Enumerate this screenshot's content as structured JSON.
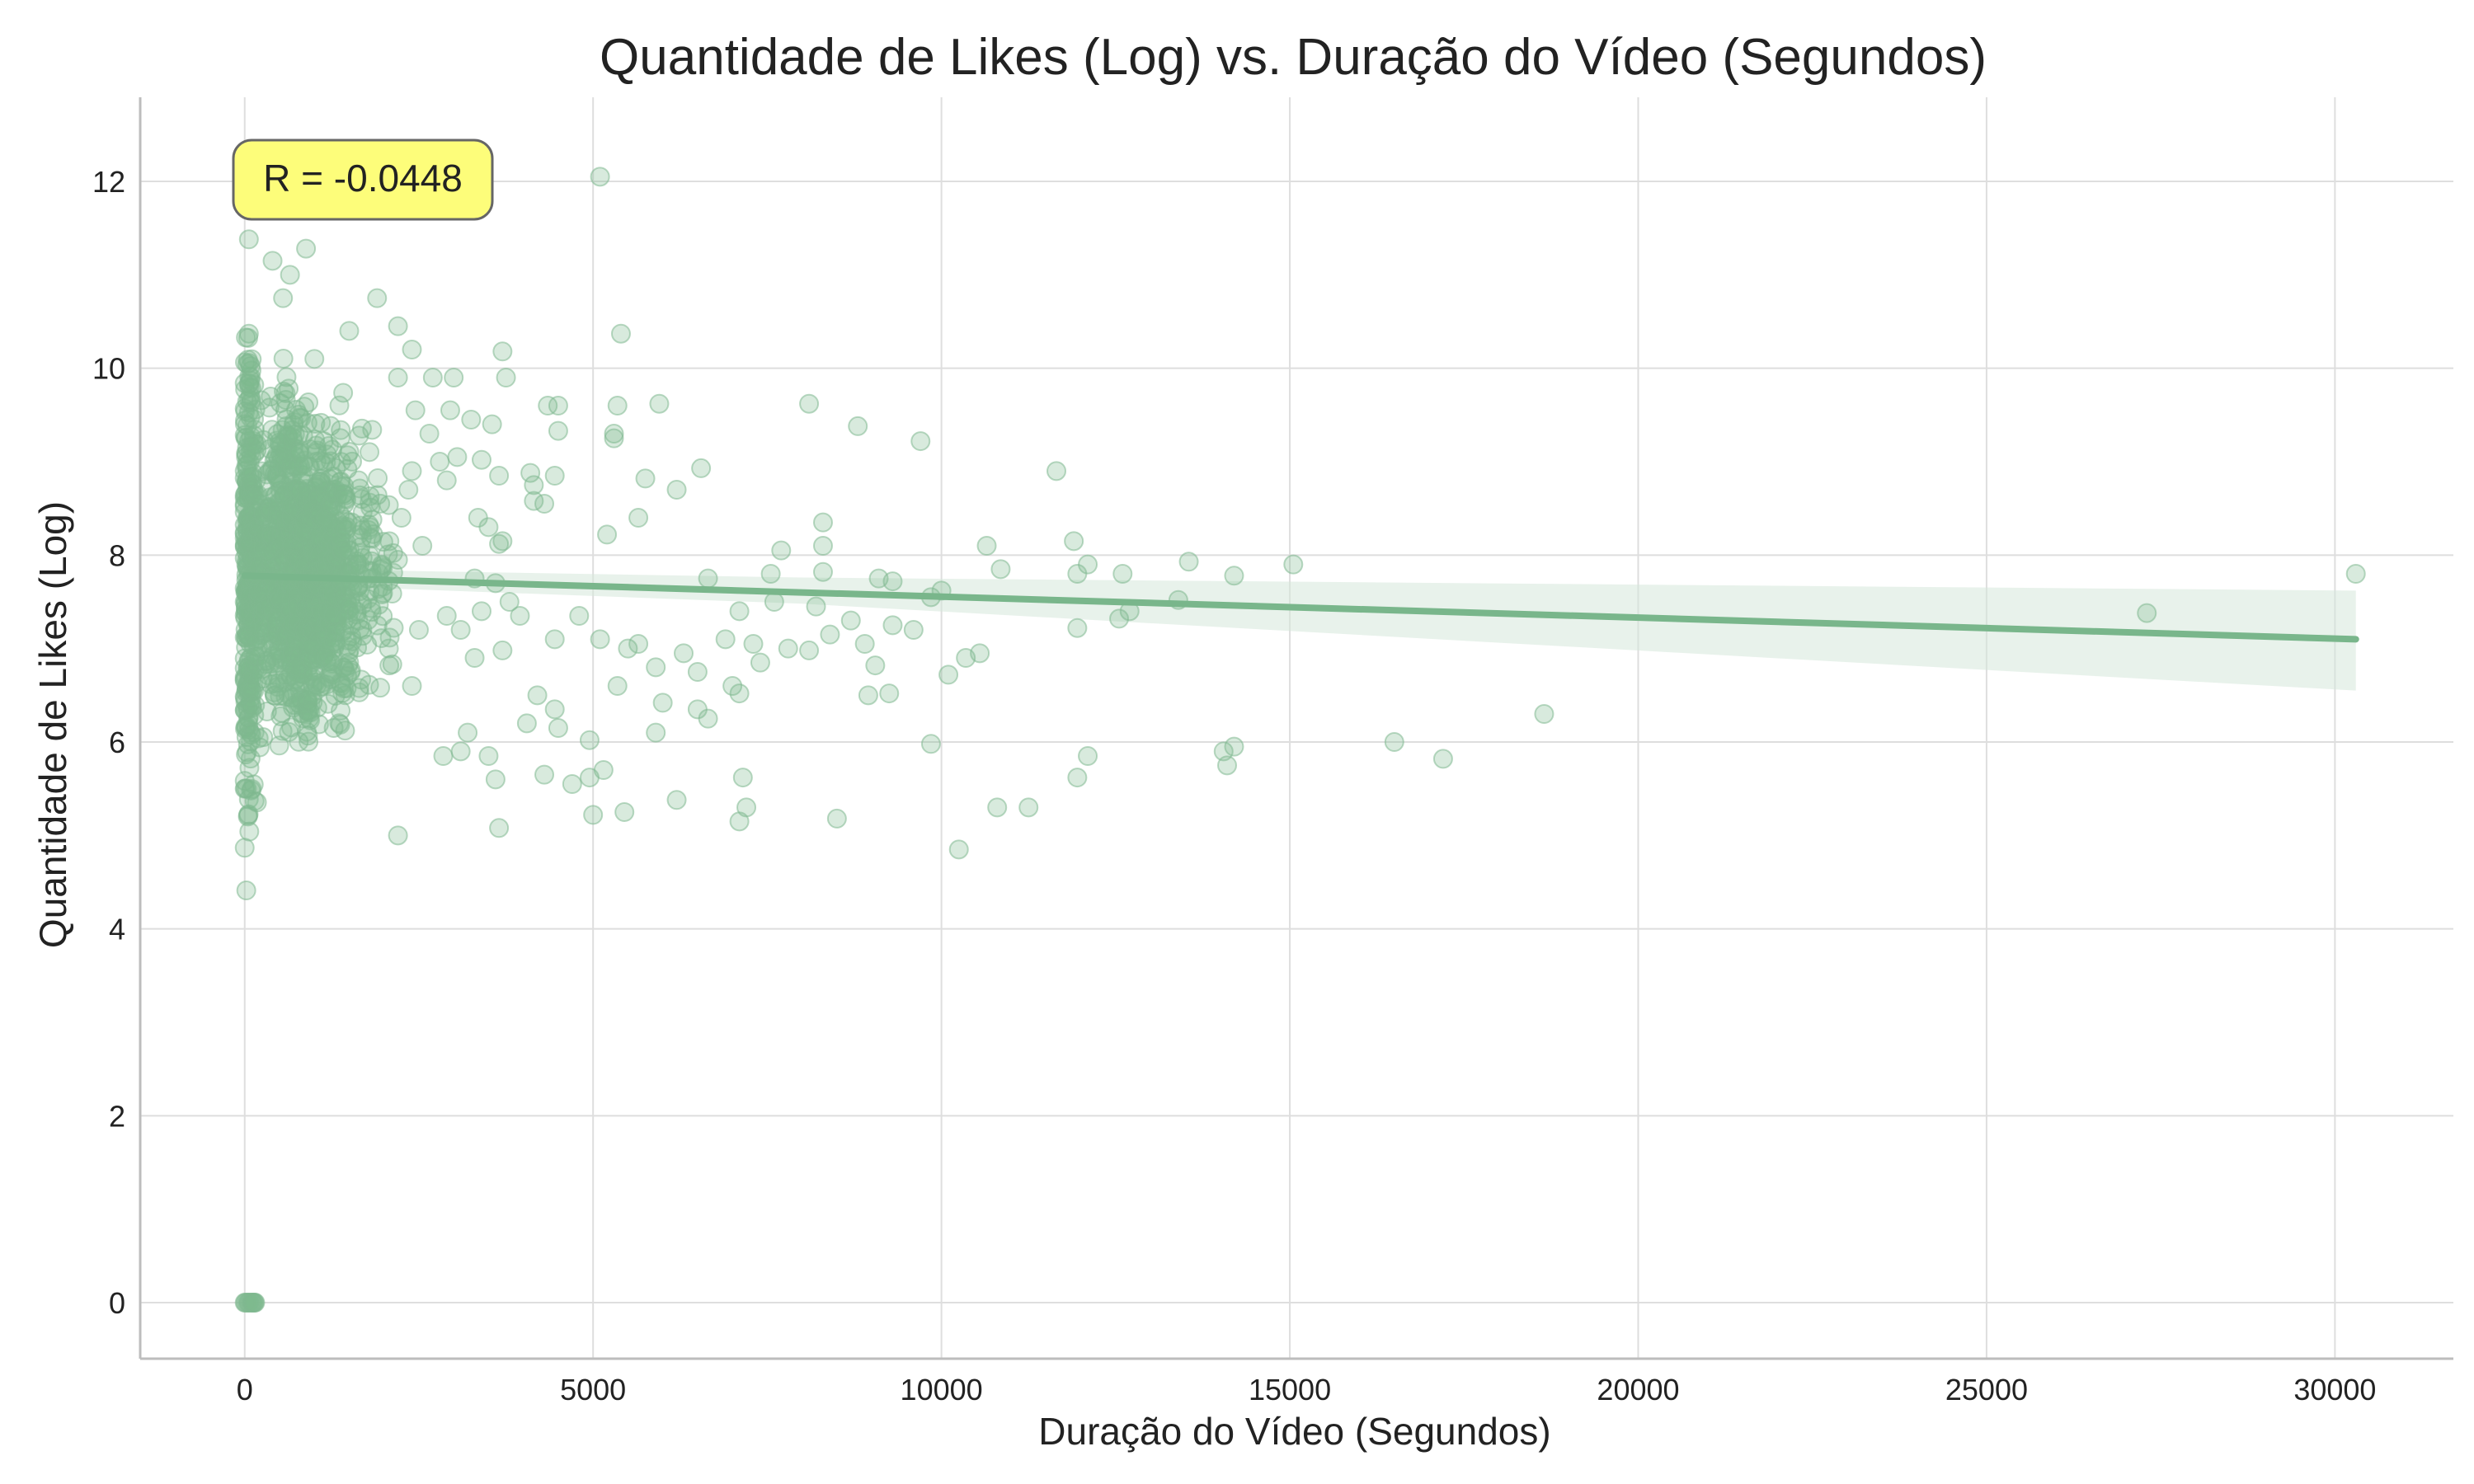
{
  "chart_data": {
    "type": "scatter",
    "title": "Quantidade de Likes (Log) vs. Duração do Vídeo (Segundos)",
    "xlabel": "Duração do Vídeo (Segundos)",
    "ylabel": "Quantidade de Likes (Log)",
    "xlim": [
      -1500,
      31700
    ],
    "ylim": [
      -0.6,
      12.9
    ],
    "xticks": [
      0,
      5000,
      10000,
      15000,
      20000,
      25000,
      30000
    ],
    "yticks": [
      0,
      2,
      4,
      6,
      8,
      10,
      12
    ],
    "grid": true,
    "annotation": "R = -0.0448",
    "point_color": "#7fb88f",
    "line_color": "#79b68b",
    "band_color": "#d5e8da",
    "annotation_fill": "#fdfd7a",
    "annotation_edge": "#666666",
    "regression": {
      "x_range": [
        0,
        30300
      ],
      "y_start": 7.78,
      "y_end": 7.1,
      "ci_at_end": [
        6.55,
        7.62
      ]
    },
    "series": [
      {
        "points": [
          [
            5100,
            12.05
          ],
          [
            400,
            12.3
          ],
          [
            850,
            11.7
          ],
          [
            880,
            11.28
          ],
          [
            60,
            11.38
          ],
          [
            400,
            11.15
          ],
          [
            650,
            11.0
          ],
          [
            550,
            10.75
          ],
          [
            1900,
            10.75
          ],
          [
            2200,
            10.45
          ],
          [
            1500,
            10.4
          ],
          [
            5400,
            10.37
          ],
          [
            60,
            10.37
          ],
          [
            2400,
            10.2
          ],
          [
            3700,
            10.18
          ],
          [
            1000,
            10.1
          ],
          [
            2200,
            9.9
          ],
          [
            3000,
            9.9
          ],
          [
            3750,
            9.9
          ],
          [
            5950,
            9.62
          ],
          [
            5350,
            9.6
          ],
          [
            4350,
            9.6
          ],
          [
            4500,
            9.6
          ],
          [
            8100,
            9.62
          ],
          [
            3250,
            9.45
          ],
          [
            8800,
            9.38
          ],
          [
            4500,
            9.33
          ],
          [
            5300,
            9.3
          ],
          [
            5300,
            9.25
          ],
          [
            9700,
            9.22
          ],
          [
            3050,
            9.05
          ],
          [
            3400,
            9.02
          ],
          [
            6550,
            8.93
          ],
          [
            11650,
            8.9
          ],
          [
            4100,
            8.88
          ],
          [
            4450,
            8.85
          ],
          [
            5750,
            8.82
          ],
          [
            4150,
            8.75
          ],
          [
            6200,
            8.7
          ],
          [
            4150,
            8.58
          ],
          [
            4300,
            8.55
          ],
          [
            5650,
            8.4
          ],
          [
            8300,
            8.35
          ],
          [
            3350,
            8.4
          ],
          [
            3500,
            8.3
          ],
          [
            5200,
            8.22
          ],
          [
            3650,
            8.12
          ],
          [
            10650,
            8.1
          ],
          [
            11900,
            8.15
          ],
          [
            8300,
            8.1
          ],
          [
            7700,
            8.05
          ],
          [
            12100,
            7.9
          ],
          [
            13550,
            7.93
          ],
          [
            15050,
            7.9
          ],
          [
            10850,
            7.85
          ],
          [
            11950,
            7.8
          ],
          [
            12600,
            7.8
          ],
          [
            14200,
            7.78
          ],
          [
            8300,
            7.82
          ],
          [
            7550,
            7.8
          ],
          [
            6650,
            7.75
          ],
          [
            9100,
            7.75
          ],
          [
            9300,
            7.72
          ],
          [
            10000,
            7.62
          ],
          [
            9850,
            7.55
          ],
          [
            13400,
            7.52
          ],
          [
            12700,
            7.4
          ],
          [
            12550,
            7.32
          ],
          [
            11950,
            7.22
          ],
          [
            7100,
            7.4
          ],
          [
            7600,
            7.5
          ],
          [
            8200,
            7.45
          ],
          [
            8700,
            7.3
          ],
          [
            9300,
            7.25
          ],
          [
            9600,
            7.2
          ],
          [
            8400,
            7.15
          ],
          [
            6900,
            7.1
          ],
          [
            7300,
            7.05
          ],
          [
            7800,
            7.0
          ],
          [
            8100,
            6.98
          ],
          [
            8900,
            7.05
          ],
          [
            10550,
            6.95
          ],
          [
            10350,
            6.9
          ],
          [
            10100,
            6.72
          ],
          [
            6300,
            6.95
          ],
          [
            6500,
            6.75
          ],
          [
            7000,
            6.6
          ],
          [
            7400,
            6.85
          ],
          [
            9050,
            6.82
          ],
          [
            8950,
            6.5
          ],
          [
            9250,
            6.52
          ],
          [
            7100,
            6.52
          ],
          [
            6500,
            6.35
          ],
          [
            6650,
            6.25
          ],
          [
            4450,
            7.1
          ],
          [
            4800,
            7.35
          ],
          [
            5100,
            7.1
          ],
          [
            5500,
            7.0
          ],
          [
            5650,
            7.05
          ],
          [
            5350,
            6.6
          ],
          [
            5900,
            6.1
          ],
          [
            6000,
            6.42
          ],
          [
            5900,
            6.8
          ],
          [
            4200,
            6.5
          ],
          [
            4450,
            6.35
          ],
          [
            3800,
            7.5
          ],
          [
            3950,
            7.35
          ],
          [
            3700,
            6.98
          ],
          [
            4050,
            6.2
          ],
          [
            4500,
            6.15
          ],
          [
            4950,
            6.02
          ],
          [
            5150,
            5.7
          ],
          [
            4950,
            5.62
          ],
          [
            4300,
            5.65
          ],
          [
            4700,
            5.55
          ],
          [
            5000,
            5.22
          ],
          [
            5450,
            5.25
          ],
          [
            6200,
            5.38
          ],
          [
            7150,
            5.62
          ],
          [
            7200,
            5.3
          ],
          [
            7100,
            5.15
          ],
          [
            8500,
            5.18
          ],
          [
            10250,
            4.85
          ],
          [
            10800,
            5.3
          ],
          [
            11250,
            5.3
          ],
          [
            11950,
            5.62
          ],
          [
            12100,
            5.85
          ],
          [
            9850,
            5.98
          ],
          [
            14050,
            5.9
          ],
          [
            14200,
            5.95
          ],
          [
            14100,
            5.75
          ],
          [
            16500,
            6.0
          ],
          [
            17200,
            5.82
          ],
          [
            18650,
            6.3
          ],
          [
            27300,
            7.38
          ],
          [
            30300,
            7.8
          ],
          [
            3600,
            5.6
          ],
          [
            3650,
            5.08
          ],
          [
            2200,
            5.0
          ],
          [
            3200,
            6.1
          ],
          [
            3100,
            5.9
          ],
          [
            2850,
            5.85
          ],
          [
            3500,
            5.85
          ],
          [
            2400,
            6.6
          ],
          [
            2500,
            7.2
          ],
          [
            3300,
            6.9
          ],
          [
            3400,
            7.4
          ],
          [
            3100,
            7.2
          ],
          [
            2900,
            7.35
          ],
          [
            3600,
            7.7
          ],
          [
            3300,
            7.75
          ],
          [
            3700,
            8.15
          ],
          [
            3650,
            8.85
          ],
          [
            2900,
            8.8
          ],
          [
            2800,
            9.0
          ],
          [
            2650,
            9.3
          ],
          [
            2450,
            9.55
          ],
          [
            2700,
            9.9
          ],
          [
            2950,
            9.55
          ],
          [
            3550,
            9.4
          ],
          [
            2350,
            8.7
          ],
          [
            2550,
            8.1
          ],
          [
            2200,
            7.95
          ],
          [
            2250,
            8.4
          ],
          [
            2400,
            8.9
          ]
        ],
        "dense_cluster": {
          "columns": [
            [
              20,
              3.45,
              10.4,
              120
            ],
            [
              60,
              3.6,
              10.1,
              100
            ],
            [
              100,
              4.2,
              10.0,
              80
            ],
            [
              150,
              4.9,
              9.8,
              50
            ],
            [
              220,
              5.2,
              9.9,
              35
            ],
            [
              300,
              5.7,
              10.0,
              45
            ],
            [
              400,
              5.8,
              10.3,
              65
            ],
            [
              500,
              5.9,
              10.5,
              85
            ],
            [
              600,
              5.7,
              10.7,
              100
            ],
            [
              700,
              5.8,
              10.4,
              105
            ],
            [
              800,
              5.8,
              10.3,
              105
            ],
            [
              900,
              5.9,
              10.3,
              100
            ],
            [
              1000,
              5.9,
              10.0,
              95
            ],
            [
              1100,
              6.0,
              10.1,
              85
            ],
            [
              1200,
              6.0,
              9.9,
              75
            ],
            [
              1300,
              5.95,
              9.8,
              65
            ],
            [
              1400,
              6.0,
              10.4,
              55
            ],
            [
              1500,
              5.75,
              9.9,
              45
            ],
            [
              1650,
              6.2,
              9.7,
              35
            ],
            [
              1800,
              6.3,
              9.8,
              25
            ],
            [
              1950,
              6.5,
              9.4,
              18
            ],
            [
              2100,
              6.8,
              9.2,
              12
            ]
          ],
          "zero_points": [
            [
              0,
              0
            ],
            [
              30,
              0
            ],
            [
              60,
              0
            ],
            [
              80,
              0
            ],
            [
              110,
              0
            ],
            [
              130,
              0
            ],
            [
              150,
              0
            ],
            [
              10,
              0
            ],
            [
              50,
              0
            ],
            [
              100,
              0
            ],
            [
              120,
              0
            ],
            [
              140,
              0
            ]
          ]
        }
      }
    ]
  }
}
